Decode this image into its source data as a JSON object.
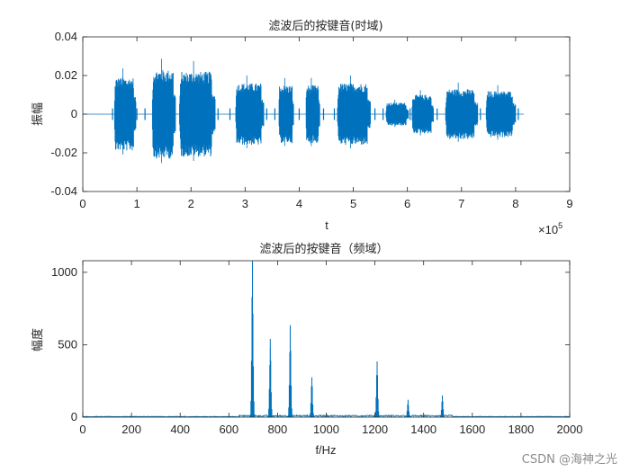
{
  "colors": {
    "series": "#0072BD",
    "axis": "#262626",
    "background": "#ffffff"
  },
  "watermark": "CSDN @海神之光",
  "chart_data": [
    {
      "type": "line",
      "title": "滤波后的按键音(时域)",
      "xlabel": "t",
      "ylabel": "振幅",
      "x_exponent_label": "×10",
      "x_exponent_power": "5",
      "xlim": [
        0,
        9
      ],
      "ylim": [
        -0.04,
        0.04
      ],
      "xticks": [
        0,
        1,
        2,
        3,
        4,
        5,
        6,
        7,
        8,
        9
      ],
      "xtick_labels": [
        "0",
        "1",
        "2",
        "3",
        "4",
        "5",
        "6",
        "7",
        "8",
        "9"
      ],
      "yticks": [
        0.04,
        0.02,
        0,
        -0.02,
        -0.04
      ],
      "ytick_labels": [
        "0.04",
        "0.02",
        "0",
        "-0.02",
        "-0.04"
      ],
      "x_units_note": "x values in units of 10^5 samples",
      "bursts": [
        {
          "start": 0.58,
          "end": 0.98,
          "amp": 0.019
        },
        {
          "start": 1.28,
          "end": 1.72,
          "amp": 0.023
        },
        {
          "start": 1.78,
          "end": 2.45,
          "amp": 0.022
        },
        {
          "start": 2.82,
          "end": 3.35,
          "amp": 0.016
        },
        {
          "start": 3.62,
          "end": 3.9,
          "amp": 0.015
        },
        {
          "start": 4.12,
          "end": 4.38,
          "amp": 0.015
        },
        {
          "start": 4.7,
          "end": 5.32,
          "amp": 0.016
        },
        {
          "start": 5.6,
          "end": 6.02,
          "amp": 0.006
        },
        {
          "start": 6.08,
          "end": 6.48,
          "amp": 0.01
        },
        {
          "start": 6.7,
          "end": 7.3,
          "amp": 0.013
        },
        {
          "start": 7.45,
          "end": 8.0,
          "amp": 0.012
        }
      ],
      "grid": false,
      "legend": "none"
    },
    {
      "type": "line",
      "title": "滤波后的按键音（频域）",
      "xlabel": "f/Hz",
      "ylabel": "幅度",
      "xlim": [
        0,
        2000
      ],
      "ylim": [
        0,
        1080
      ],
      "xticks": [
        0,
        200,
        400,
        600,
        800,
        1000,
        1200,
        1400,
        1600,
        1800,
        2000
      ],
      "xtick_labels": [
        "0",
        "200",
        "400",
        "600",
        "800",
        "1000",
        "1200",
        "1400",
        "1600",
        "1800",
        "2000"
      ],
      "yticks": [
        0,
        500,
        1000
      ],
      "ytick_labels": [
        "0",
        "500",
        "1000"
      ],
      "peaks": [
        {
          "f": 697,
          "value": 1080
        },
        {
          "f": 770,
          "value": 540
        },
        {
          "f": 852,
          "value": 635
        },
        {
          "f": 941,
          "value": 275
        },
        {
          "f": 1209,
          "value": 385
        },
        {
          "f": 1336,
          "value": 120
        },
        {
          "f": 1477,
          "value": 150
        }
      ],
      "grid": false,
      "legend": "none"
    }
  ]
}
